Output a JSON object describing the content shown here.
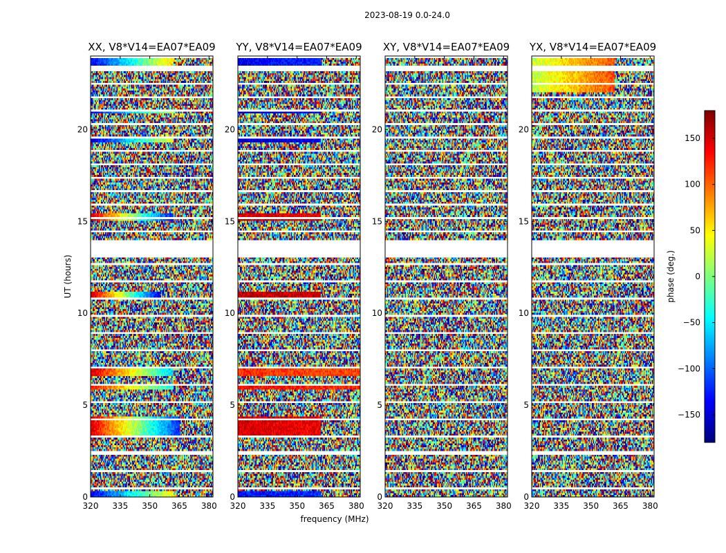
{
  "chart_data": {
    "type": "heatmap",
    "suptitle": "2023-08-19 0.0-24.0",
    "xlabel": "frequency (MHz)",
    "ylabel": "UT (hours)",
    "x_ticks": [
      320,
      335,
      350,
      365,
      380
    ],
    "x_tick_labels": [
      "320",
      "335",
      "350",
      "365",
      "380"
    ],
    "xlim": [
      320,
      382
    ],
    "y_ticks": [
      0,
      5,
      10,
      15,
      20
    ],
    "y_tick_labels": [
      "0",
      "5",
      "10",
      "15",
      "20"
    ],
    "ylim": [
      0,
      24
    ],
    "colorbar": {
      "label": "phase (deg.)",
      "range": [
        -180,
        180
      ],
      "ticks": [
        150,
        100,
        50,
        0,
        -50,
        -100,
        -150
      ],
      "tick_labels": [
        "150",
        "100",
        "50",
        "0",
        "−50",
        "−100",
        "−150"
      ],
      "colormap": [
        "#00007f",
        "#0000ff",
        "#007fff",
        "#00ffff",
        "#7fff7f",
        "#ffff00",
        "#ff7f00",
        "#ff0000",
        "#7f0000"
      ]
    },
    "flagged_ut_ranges": [
      [
        13.05,
        14.0
      ],
      [
        23.3,
        23.45
      ],
      [
        2.45,
        2.5
      ],
      [
        0.45,
        0.55
      ]
    ],
    "panels": [
      {
        "title": "XX, V8*V14=EA07*EA09",
        "coherent_bands": [
          {
            "ut": [
              23.45,
              24.0
            ],
            "freq_end": 362,
            "phase_start": -140,
            "phase_end": 60
          },
          {
            "ut": [
              20.85,
              21.1
            ],
            "freq_end": 362,
            "phase_start": -140,
            "phase_end": 20
          },
          {
            "ut": [
              19.3,
              19.5
            ],
            "freq_end": 362,
            "phase_start": -150,
            "phase_end": 40
          },
          {
            "ut": [
              15.0,
              15.4
            ],
            "freq_end": 362,
            "phase_start": 150,
            "phase_end": -130
          },
          {
            "ut": [
              10.8,
              11.2
            ],
            "freq_end": 355,
            "phase_start": 160,
            "phase_end": -140
          },
          {
            "ut": [
              6.6,
              7.0
            ],
            "freq_end": 362,
            "phase_start": 150,
            "phase_end": -60
          },
          {
            "ut": [
              5.8,
              6.1
            ],
            "freq_end": 362,
            "phase_start": 130,
            "phase_end": -40
          },
          {
            "ut": [
              3.3,
              4.4
            ],
            "freq_end": 365,
            "phase_start": 150,
            "phase_end": -120
          },
          {
            "ut": [
              0.0,
              0.3
            ],
            "freq_end": 362,
            "phase_start": -140,
            "phase_end": 50
          }
        ]
      },
      {
        "title": "YY, V8*V14=EA07*EA09",
        "coherent_bands": [
          {
            "ut": [
              23.45,
              24.0
            ],
            "freq_end": 362,
            "phase_start": -140,
            "phase_end": -120
          },
          {
            "ut": [
              20.85,
              21.1
            ],
            "freq_end": 362,
            "phase_start": -150,
            "phase_end": -140
          },
          {
            "ut": [
              19.3,
              19.5
            ],
            "freq_end": 362,
            "phase_start": -150,
            "phase_end": -140
          },
          {
            "ut": [
              15.0,
              15.4
            ],
            "freq_end": 362,
            "phase_start": 150,
            "phase_end": 140
          },
          {
            "ut": [
              10.8,
              11.2
            ],
            "freq_end": 362,
            "phase_start": 160,
            "phase_end": 150
          },
          {
            "ut": [
              6.6,
              7.0
            ],
            "freq_end": 382,
            "phase_start": 120,
            "phase_end": 110
          },
          {
            "ut": [
              5.8,
              6.1
            ],
            "freq_end": 382,
            "phase_start": 130,
            "phase_end": 120
          },
          {
            "ut": [
              3.3,
              4.4
            ],
            "freq_end": 362,
            "phase_start": 150,
            "phase_end": 140
          },
          {
            "ut": [
              0.0,
              0.3
            ],
            "freq_end": 362,
            "phase_start": -130,
            "phase_end": -120
          }
        ]
      },
      {
        "title": "XY, V8*V14=EA07*EA09",
        "coherent_bands": []
      },
      {
        "title": "YX, V8*V14=EA07*EA09",
        "coherent_bands": [
          {
            "ut": [
              22.0,
              24.0
            ],
            "freq_end": 362,
            "phase_start": 20,
            "phase_end": 110
          }
        ]
      }
    ]
  }
}
